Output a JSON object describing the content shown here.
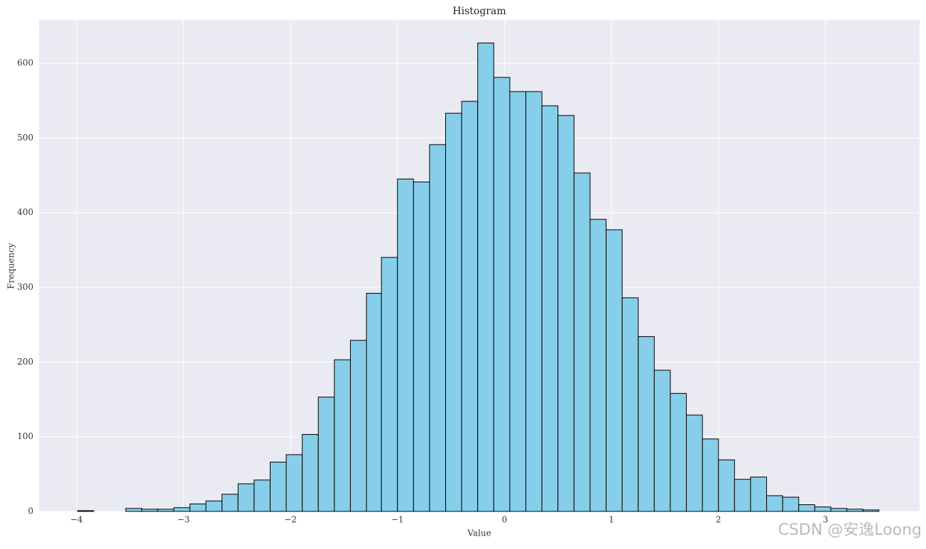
{
  "chart_data": {
    "type": "histogram",
    "title": "Histogram",
    "x_label": "Value",
    "y_label": "Frequency",
    "bins": [
      -3.99,
      -3.84,
      -3.69,
      -3.54,
      -3.39,
      -3.24,
      -3.09,
      -2.94,
      -2.79,
      -2.64,
      -2.49,
      -2.34,
      -2.19,
      -2.04,
      -1.89,
      -1.74,
      -1.59,
      -1.44,
      -1.29,
      -1.15,
      -1.0,
      -0.85,
      -0.7,
      -0.55,
      -0.4,
      -0.25,
      -0.1,
      0.05,
      0.2,
      0.35,
      0.5,
      0.65,
      0.8,
      0.95,
      1.1,
      1.25,
      1.4,
      1.55,
      1.7,
      1.85,
      2.0,
      2.15,
      2.3,
      2.45,
      2.6,
      2.75,
      2.9,
      3.05,
      3.2,
      3.35,
      3.5
    ],
    "values": [
      1,
      0,
      0,
      4,
      3,
      3,
      5,
      10,
      14,
      23,
      37,
      42,
      66,
      76,
      103,
      153,
      203,
      229,
      292,
      340,
      445,
      441,
      491,
      533,
      549,
      627,
      581,
      562,
      562,
      543,
      530,
      453,
      391,
      377,
      286,
      234,
      189,
      158,
      129,
      97,
      69,
      43,
      46,
      21,
      19,
      9,
      6,
      4,
      3,
      2
    ],
    "color": "#87ceeb",
    "edge_color": "#000000",
    "xlim": [
      -4.35,
      3.88
    ],
    "ylim": [
      0,
      658
    ],
    "xticks": [
      {
        "value": -4,
        "label": "−4"
      },
      {
        "value": -3,
        "label": "−3"
      },
      {
        "value": -2,
        "label": "−2"
      },
      {
        "value": -1,
        "label": "−1"
      },
      0,
      1,
      2,
      3
    ],
    "yticks": [
      0,
      100,
      200,
      300,
      400,
      500,
      600
    ],
    "grid": true,
    "background": "#eaeaf2",
    "watermark": "CSDN @安逸Loong"
  }
}
